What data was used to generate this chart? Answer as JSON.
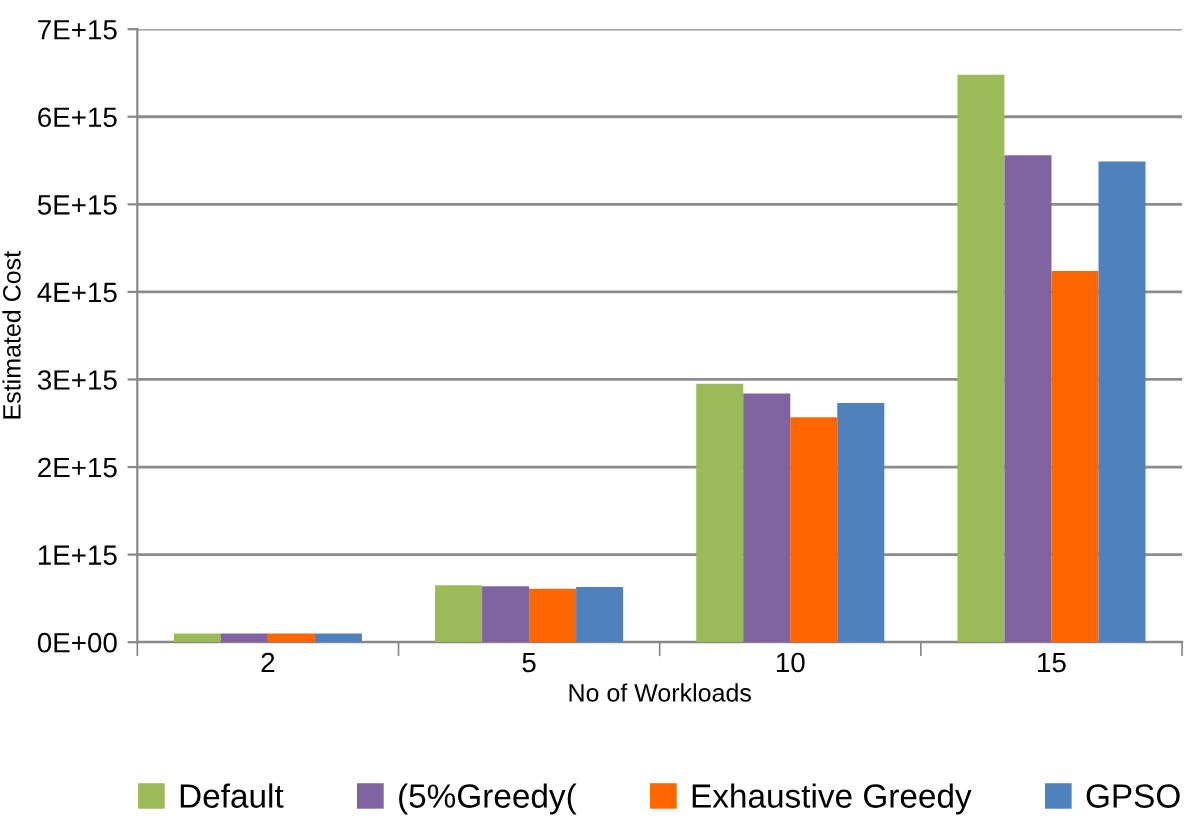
{
  "chart_data": {
    "type": "bar",
    "xlabel": "No of Workloads",
    "ylabel": "Estimated Cost",
    "categories": [
      "2",
      "5",
      "10",
      "15"
    ],
    "series": [
      {
        "name": "Default",
        "color": "#9bbb59",
        "values": [
          100000000000000.0,
          650000000000000.0,
          2950000000000000.0,
          6480000000000000.0
        ]
      },
      {
        "name": "(5%Greedy(",
        "color": "#8064a2",
        "values": [
          100000000000000.0,
          640000000000000.0,
          2840000000000000.0,
          5560000000000000.0
        ]
      },
      {
        "name": "Exhaustive Greedy",
        "color": "#ff6600",
        "values": [
          100000000000000.0,
          610000000000000.0,
          2570000000000000.0,
          4240000000000000.0
        ]
      },
      {
        "name": "GPSO",
        "color": "#4f81bd",
        "values": [
          100000000000000.0,
          630000000000000.0,
          2730000000000000.0,
          5490000000000000.0
        ]
      }
    ],
    "ylim": [
      0,
      7000000000000000.0
    ],
    "yticks": [
      {
        "value": 0,
        "label": "0E+00"
      },
      {
        "value": 1000000000000000.0,
        "label": "1E+15"
      },
      {
        "value": 2000000000000000.0,
        "label": "2E+15"
      },
      {
        "value": 3000000000000000.0,
        "label": "3E+15"
      },
      {
        "value": 4000000000000000.0,
        "label": "4E+15"
      },
      {
        "value": 5000000000000000.0,
        "label": "5E+15"
      },
      {
        "value": 6000000000000000.0,
        "label": "6E+15"
      },
      {
        "value": 7000000000000000.0,
        "label": "7E+15"
      }
    ],
    "grid": "y",
    "legend": "bottom"
  }
}
